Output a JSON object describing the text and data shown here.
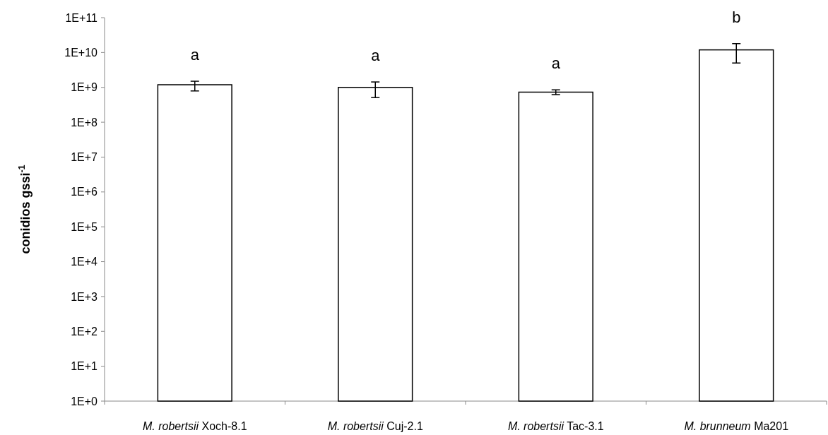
{
  "chart_data": {
    "type": "bar",
    "ylabel": "conidios  gssi$^{-1}$",
    "log": true,
    "categories": [
      "M. robertsii Xoch-8.1",
      "M. robertsii Cuj-2.1",
      "M. robertsii Tac-3.1",
      "M. brunneum Ma201"
    ],
    "values": [
      1190000000.0,
      1000000000.0,
      730000000.0,
      11900000000.0
    ],
    "errors": [
      [
        790000000.0,
        1500000000.0
      ],
      [
        510000000.0,
        1430000000.0
      ],
      [
        620000000.0,
        850000000.0
      ],
      [
        5000000000.0,
        18000000000.0
      ]
    ],
    "color": "#ffffff",
    "ylim": [
      1,
      100000000000.0
    ],
    "yticks": [
      {
        "value": 1,
        "label": "1E+0"
      },
      {
        "value": 10,
        "label": "1E+1"
      },
      {
        "value": 100,
        "label": "1E+2"
      },
      {
        "value": 1000,
        "label": "1E+3"
      },
      {
        "value": 10000,
        "label": "1E+4"
      },
      {
        "value": 100000,
        "label": "1E+5"
      },
      {
        "value": 1000000,
        "label": "1E+6"
      },
      {
        "value": 10000000,
        "label": "1E+7"
      },
      {
        "value": 100000000,
        "label": "1E+8"
      },
      {
        "value": 1000000000,
        "label": "1E+9"
      },
      {
        "value": 10000000000,
        "label": "1E+10"
      },
      {
        "value": 100000000000,
        "label": "1E+11"
      }
    ],
    "annotations": [
      "a",
      "a",
      "a",
      "b"
    ],
    "grid": false
  }
}
